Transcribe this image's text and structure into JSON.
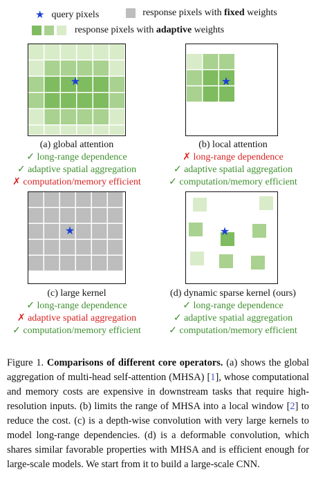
{
  "legend": {
    "query_label": "query pixels",
    "fixed_label_pre": "response pixels with ",
    "fixed_label_bold": "fixed",
    "fixed_label_post": " weights",
    "adaptive_label_pre": "response pixels with ",
    "adaptive_label_bold": "adaptive",
    "adaptive_label_post": " weights"
  },
  "colors": {
    "query_star": "#1a3fd6",
    "fixed_gray": "#bdbdbd",
    "adaptive_dark": "#7fbb5f",
    "adaptive_mid": "#a9d18f",
    "adaptive_light": "#d9ecc9",
    "check_green": "#3f8f2f",
    "cross_red": "#d82222"
  },
  "panels": {
    "a": {
      "title": "(a) global attention",
      "lines": [
        {
          "mark": "✓",
          "text": "long-range dependence",
          "ok": true
        },
        {
          "mark": "✓",
          "text": "adaptive spatial aggregation",
          "ok": true
        },
        {
          "mark": "✗",
          "text": "computation/memory efficient",
          "ok": false
        }
      ]
    },
    "b": {
      "title": "(b) local attention",
      "lines": [
        {
          "mark": "✗",
          "text": "long-range dependence",
          "ok": false
        },
        {
          "mark": "✓",
          "text": "adaptive spatial aggregation",
          "ok": true
        },
        {
          "mark": "✓",
          "text": "computation/memory efficient",
          "ok": true
        }
      ]
    },
    "c": {
      "title": "(c) large kernel",
      "lines": [
        {
          "mark": "✓",
          "text": "long-range dependence",
          "ok": true
        },
        {
          "mark": "✗",
          "text": "adaptive spatial aggregation",
          "ok": false
        },
        {
          "mark": "✓",
          "text": "computation/memory efficient",
          "ok": true
        }
      ]
    },
    "d": {
      "title": "(d) dynamic sparse kernel (ours)",
      "lines": [
        {
          "mark": "✓",
          "text": "long-range dependence",
          "ok": true
        },
        {
          "mark": "✓",
          "text": "adaptive spatial aggregation",
          "ok": true
        },
        {
          "mark": "✓",
          "text": "computation/memory efficient",
          "ok": true
        }
      ]
    }
  },
  "caption": {
    "label": "Figure 1. ",
    "bold": "Comparisons of different core operators.",
    "t1": " (a) shows the global aggregation of multi-head self-attention (MHSA) [",
    "cite1": "1",
    "t2": "], whose computational and memory costs are expensive in downstream tasks that require high-resolution inputs. (b) limits the range of MHSA into a local window [",
    "cite2": "2",
    "t3": "] to reduce the cost. (c) is a depth-wise convolution with very large kernels to model long-range dependencies. (d) is a deformable convolution, which shares similar favorable properties with MHSA and is efficient enough for large-scale models. We start from it to build a large-scale CNN."
  }
}
